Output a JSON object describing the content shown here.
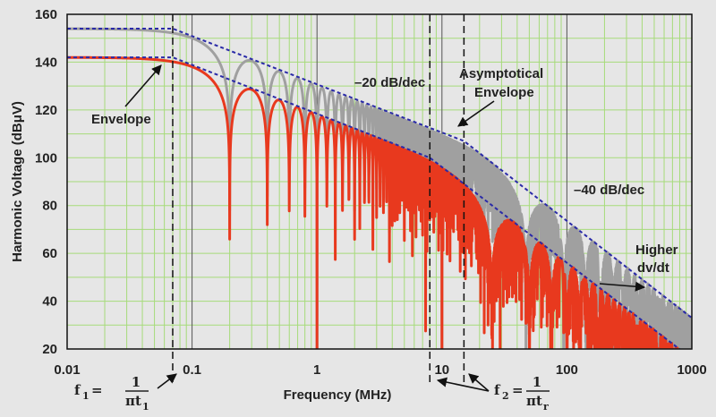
{
  "chart_data": {
    "type": "line",
    "title": "",
    "xlabel": "Frequency (MHz)",
    "ylabel": "Harmonic Voltage (dBμV)",
    "xscale": "log",
    "xlim": [
      0.01,
      1000
    ],
    "ylim": [
      20,
      160
    ],
    "x_ticks": [
      "0.01",
      "0.1",
      "1",
      "10",
      "100",
      "1000"
    ],
    "y_ticks": [
      "20",
      "40",
      "60",
      "80",
      "100",
      "120",
      "140",
      "160"
    ],
    "grid": true,
    "colors": {
      "background": "#e6e6e6",
      "grid": "#a6db7a",
      "grid_major": "#555555",
      "spectrum_slow": "#e8391e",
      "spectrum_fast": "#a0a0a0",
      "envelope": "#2a2aa8",
      "frame": "#111111"
    },
    "series": [
      {
        "type": "spectrum",
        "color_key": "spectrum_fast",
        "first_null_mhz": 0.2,
        "dc_level_db": 154,
        "f1_mhz": 0.07,
        "f2_mhz": 15,
        "envelope": [
          [
            0.01,
            154
          ],
          [
            0.07,
            154
          ],
          [
            15,
            107
          ],
          [
            1000,
            33
          ]
        ]
      },
      {
        "type": "spectrum",
        "color_key": "spectrum_slow",
        "first_null_mhz": 0.2,
        "dc_level_db": 142,
        "f1_mhz": 0.07,
        "f2_mhz": 8,
        "envelope": [
          [
            0.01,
            142
          ],
          [
            0.07,
            142
          ],
          [
            8,
            100
          ],
          [
            1000,
            16
          ]
        ]
      }
    ],
    "markers": [
      {
        "x": 0.07,
        "label": "f1"
      },
      {
        "x": 8,
        "label": "f2"
      },
      {
        "x": 15,
        "label": "f2"
      }
    ],
    "annotations": {
      "envelope": "Envelope",
      "minus20": "–20 dB/dec",
      "asymptotical_1": "Asymptotical",
      "asymptotical_2": "Envelope",
      "minus40": "–40 dB/dec",
      "higher_1": "Higher",
      "higher_2": "dv/dt"
    },
    "formulas": {
      "f1_left": "f",
      "f1_sub": "1",
      "f1_eq": "=",
      "f1_num": "1",
      "f1_den": "πt",
      "f1_den_sub": "1",
      "f2_left": "f",
      "f2_sub": "2",
      "f2_eq": "=",
      "f2_num": "1",
      "f2_den": "πt",
      "f2_den_sub": "r"
    }
  }
}
